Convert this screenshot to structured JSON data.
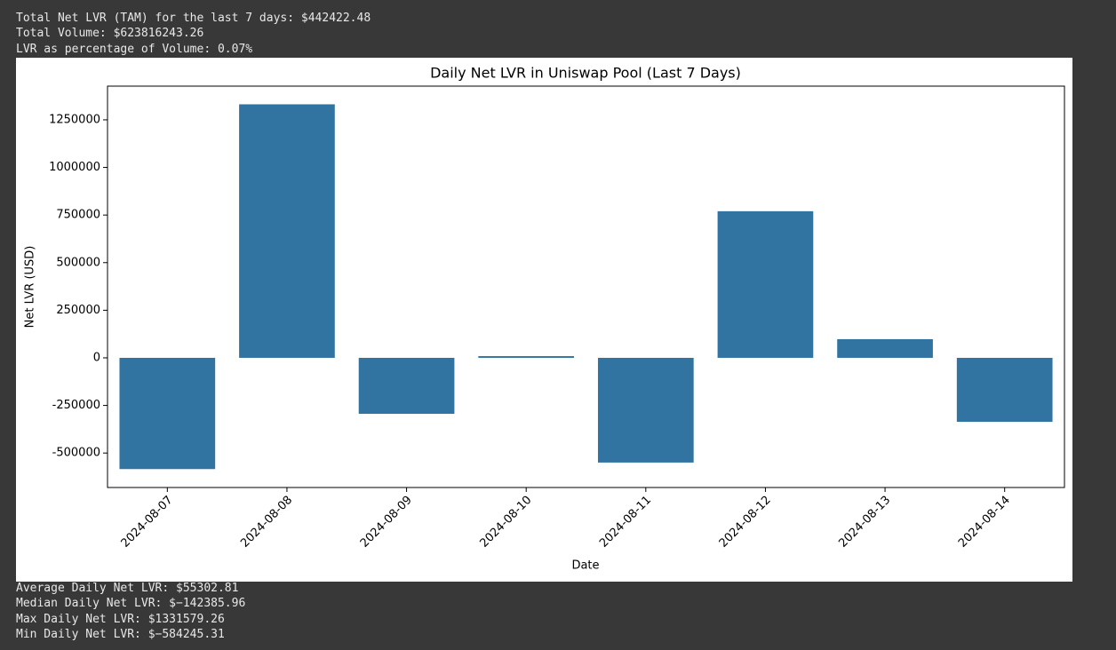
{
  "output_top": [
    "Total Net LVR (TAM) for the last 7 days: $442422.48",
    "Total Volume: $623816243.26",
    "LVR as percentage of Volume: 0.07%"
  ],
  "chart_data": {
    "type": "bar",
    "title": "Daily Net LVR in Uniswap Pool (Last 7 Days)",
    "x_label": "Date",
    "y_label": "Net LVR (USD)",
    "categories": [
      "2024-08-07",
      "2024-08-08",
      "2024-08-09",
      "2024-08-10",
      "2024-08-11",
      "2024-08-12",
      "2024-08-13",
      "2024-08-14"
    ],
    "values": [
      -584245,
      1331579,
      -294000,
      9000,
      -550000,
      770000,
      98000,
      -336000
    ],
    "color": "#3274a1",
    "ylim": [
      -681000,
      1427000
    ],
    "yticks": [
      -500000,
      -250000,
      0,
      250000,
      500000,
      750000,
      1000000,
      1250000
    ],
    "grid": false
  },
  "output_bottom": [
    "Average Daily Net LVR: $55302.81",
    "Median Daily Net LVR: $−142385.96",
    "Max Daily Net LVR: $1331579.26",
    "Min Daily Net LVR: $−584245.31"
  ]
}
